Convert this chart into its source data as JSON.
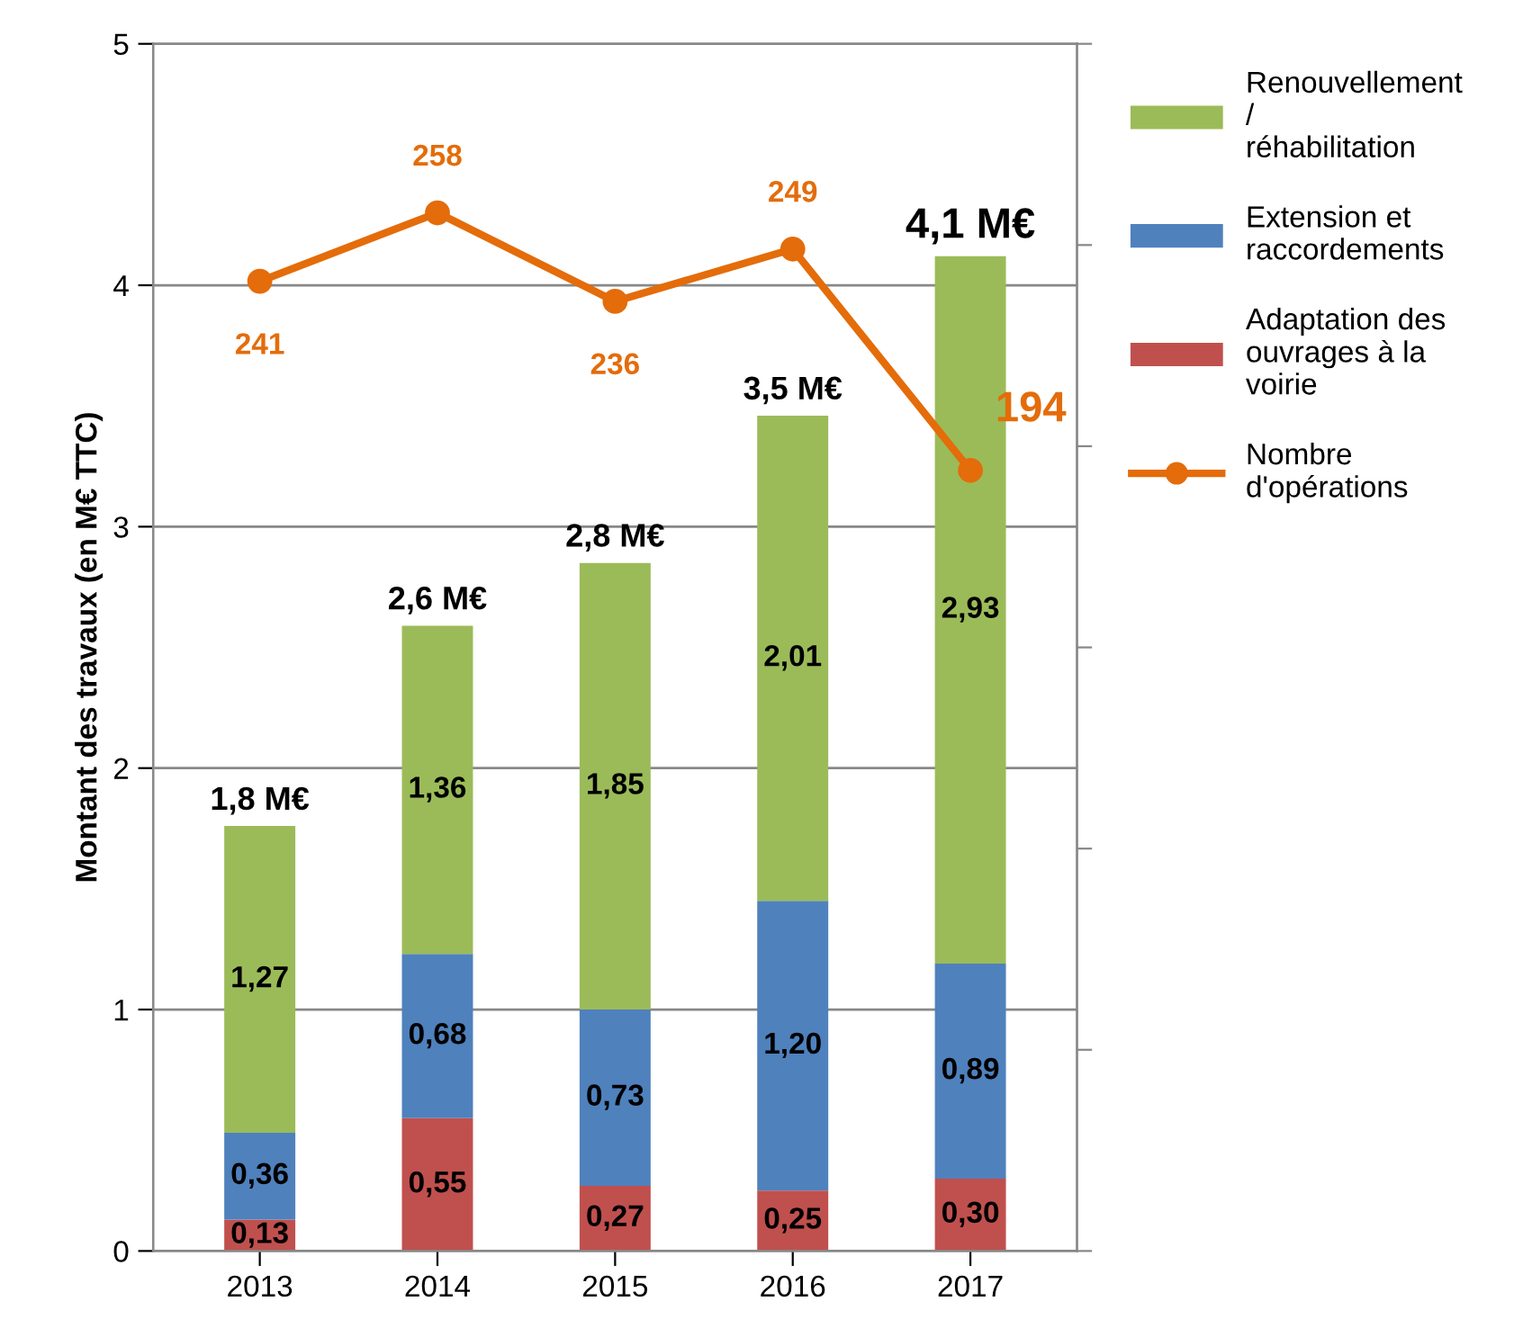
{
  "chart_data": {
    "type": "bar",
    "stacked": true,
    "ylabel": "Montant des travaux (en M€ TTC)",
    "categories": [
      "2013",
      "2014",
      "2015",
      "2016",
      "2017"
    ],
    "series": [
      {
        "name": "Adaptation des ouvrages à la voirie",
        "color": "#c0504d",
        "values": [
          0.13,
          0.55,
          0.27,
          0.25,
          0.3
        ],
        "value_labels": [
          "0,13",
          "0,55",
          "0,27",
          "0,25",
          "0,30"
        ]
      },
      {
        "name": "Extension et raccordements",
        "color": "#4f81bd",
        "values": [
          0.36,
          0.68,
          0.73,
          1.2,
          0.89
        ],
        "value_labels": [
          "0,36",
          "0,68",
          "0,73",
          "1,20",
          "0,89"
        ]
      },
      {
        "name": "Renouvellement / réhabilitation",
        "color": "#9bbb59",
        "values": [
          1.27,
          1.36,
          1.85,
          2.01,
          2.93
        ],
        "value_labels": [
          "1,27",
          "1,36",
          "1,85",
          "2,01",
          "2,93"
        ]
      },
      {
        "name": "Nombre d'opérations",
        "type": "line",
        "axis": "y2",
        "color": "#e46c0a",
        "marker": "circle",
        "values": [
          241,
          258,
          236,
          249,
          194
        ],
        "value_labels": [
          "241",
          "258",
          "236",
          "249",
          "194"
        ]
      }
    ],
    "totals": [
      "1,8 M€",
      "2,6 M€",
      "2,8 M€",
      "3,5 M€",
      "4,1 M€"
    ],
    "ylim": [
      0,
      5
    ],
    "yticks": [
      0,
      1,
      2,
      3,
      4,
      5
    ],
    "y2lim": [
      0,
      300
    ],
    "y2ticks": [
      {
        "value": 0,
        "label": null
      },
      {
        "value": 50,
        "label": null
      },
      {
        "value": 100,
        "label": null
      },
      {
        "value": 150,
        "label": null
      },
      {
        "value": 200,
        "label": null
      },
      {
        "value": 250,
        "label": null
      },
      {
        "value": 300,
        "label": null
      }
    ],
    "tick_labels": [
      "x",
      "y"
    ],
    "grid": "y",
    "legend": "right"
  }
}
